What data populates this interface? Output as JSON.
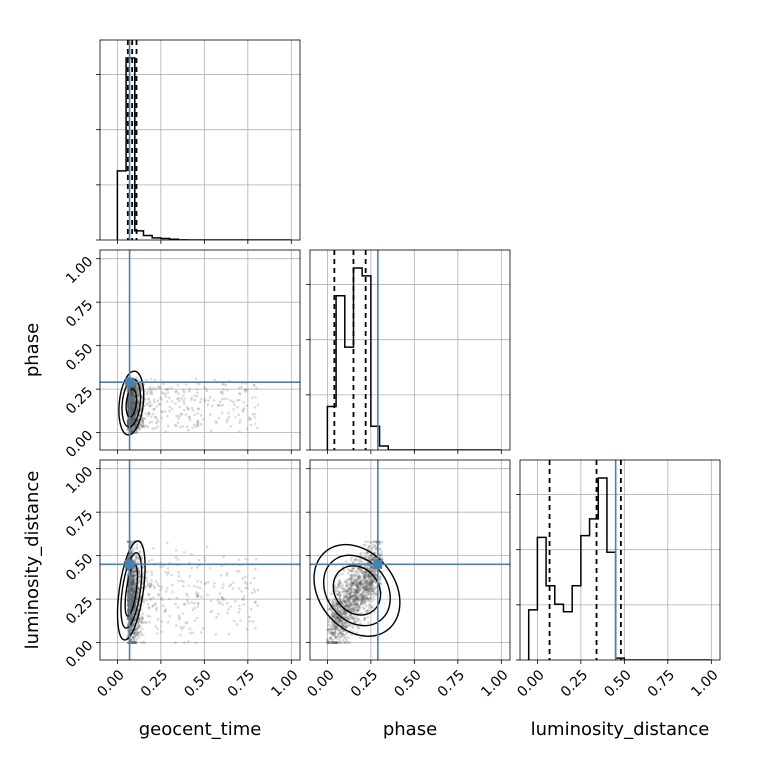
{
  "chart_data": {
    "type": "corner",
    "parameters": [
      "geocent_time",
      "phase",
      "luminosity_distance"
    ],
    "tick_labels": [
      "0.00",
      "0.25",
      "0.50",
      "0.75",
      "1.00"
    ],
    "axis_range": [
      -0.1,
      1.05
    ],
    "truths": {
      "geocent_time": 0.07,
      "phase": 0.29,
      "luminosity_distance": 0.45
    },
    "colors": {
      "truth": "#4682b4",
      "histogram": "#000000",
      "samples": "#555555",
      "grid": "#b0b0b0"
    },
    "histograms": [
      {
        "parameter": "geocent_time",
        "bin_edges": [
          0.0,
          0.05,
          0.1,
          0.15,
          0.2,
          0.25,
          0.3,
          0.35,
          0.4,
          0.45,
          0.5,
          0.55,
          0.6,
          0.65,
          0.7,
          0.75,
          0.8,
          0.85,
          0.9,
          0.95,
          1.0
        ],
        "counts": [
          0.38,
          1.0,
          0.05,
          0.025,
          0.012,
          0.008,
          0.004,
          0.001,
          0,
          0,
          0,
          0,
          0,
          0,
          0,
          0,
          0,
          0,
          0,
          0
        ],
        "quantiles": [
          0.06,
          0.085,
          0.11
        ]
      },
      {
        "parameter": "phase",
        "bin_edges": [
          0.0,
          0.05,
          0.1,
          0.15,
          0.2,
          0.25,
          0.3,
          0.35,
          0.4,
          0.45,
          0.5,
          0.55,
          0.6,
          0.65,
          0.7,
          0.75,
          0.8,
          0.85,
          0.9,
          0.95,
          1.0
        ],
        "counts": [
          0.22,
          0.78,
          0.52,
          0.92,
          0.88,
          0.12,
          0.02,
          0,
          0,
          0,
          0,
          0,
          0,
          0,
          0,
          0,
          0,
          0,
          0,
          0
        ],
        "quantiles": [
          0.04,
          0.15,
          0.22
        ]
      },
      {
        "parameter": "luminosity_distance",
        "bin_edges": [
          -0.05,
          0.0,
          0.05,
          0.1,
          0.15,
          0.2,
          0.25,
          0.3,
          0.35,
          0.4,
          0.45,
          0.5,
          0.55,
          0.6,
          0.65,
          0.7,
          0.75,
          0.8,
          0.85,
          0.9,
          0.95,
          1.0
        ],
        "counts": [
          0.27,
          0.66,
          0.4,
          0.3,
          0.26,
          0.4,
          0.67,
          0.76,
          0.98,
          0.58,
          0.01,
          0,
          0,
          0,
          0,
          0,
          0,
          0,
          0,
          0,
          0
        ],
        "quantiles": [
          0.07,
          0.34,
          0.48
        ]
      }
    ]
  }
}
